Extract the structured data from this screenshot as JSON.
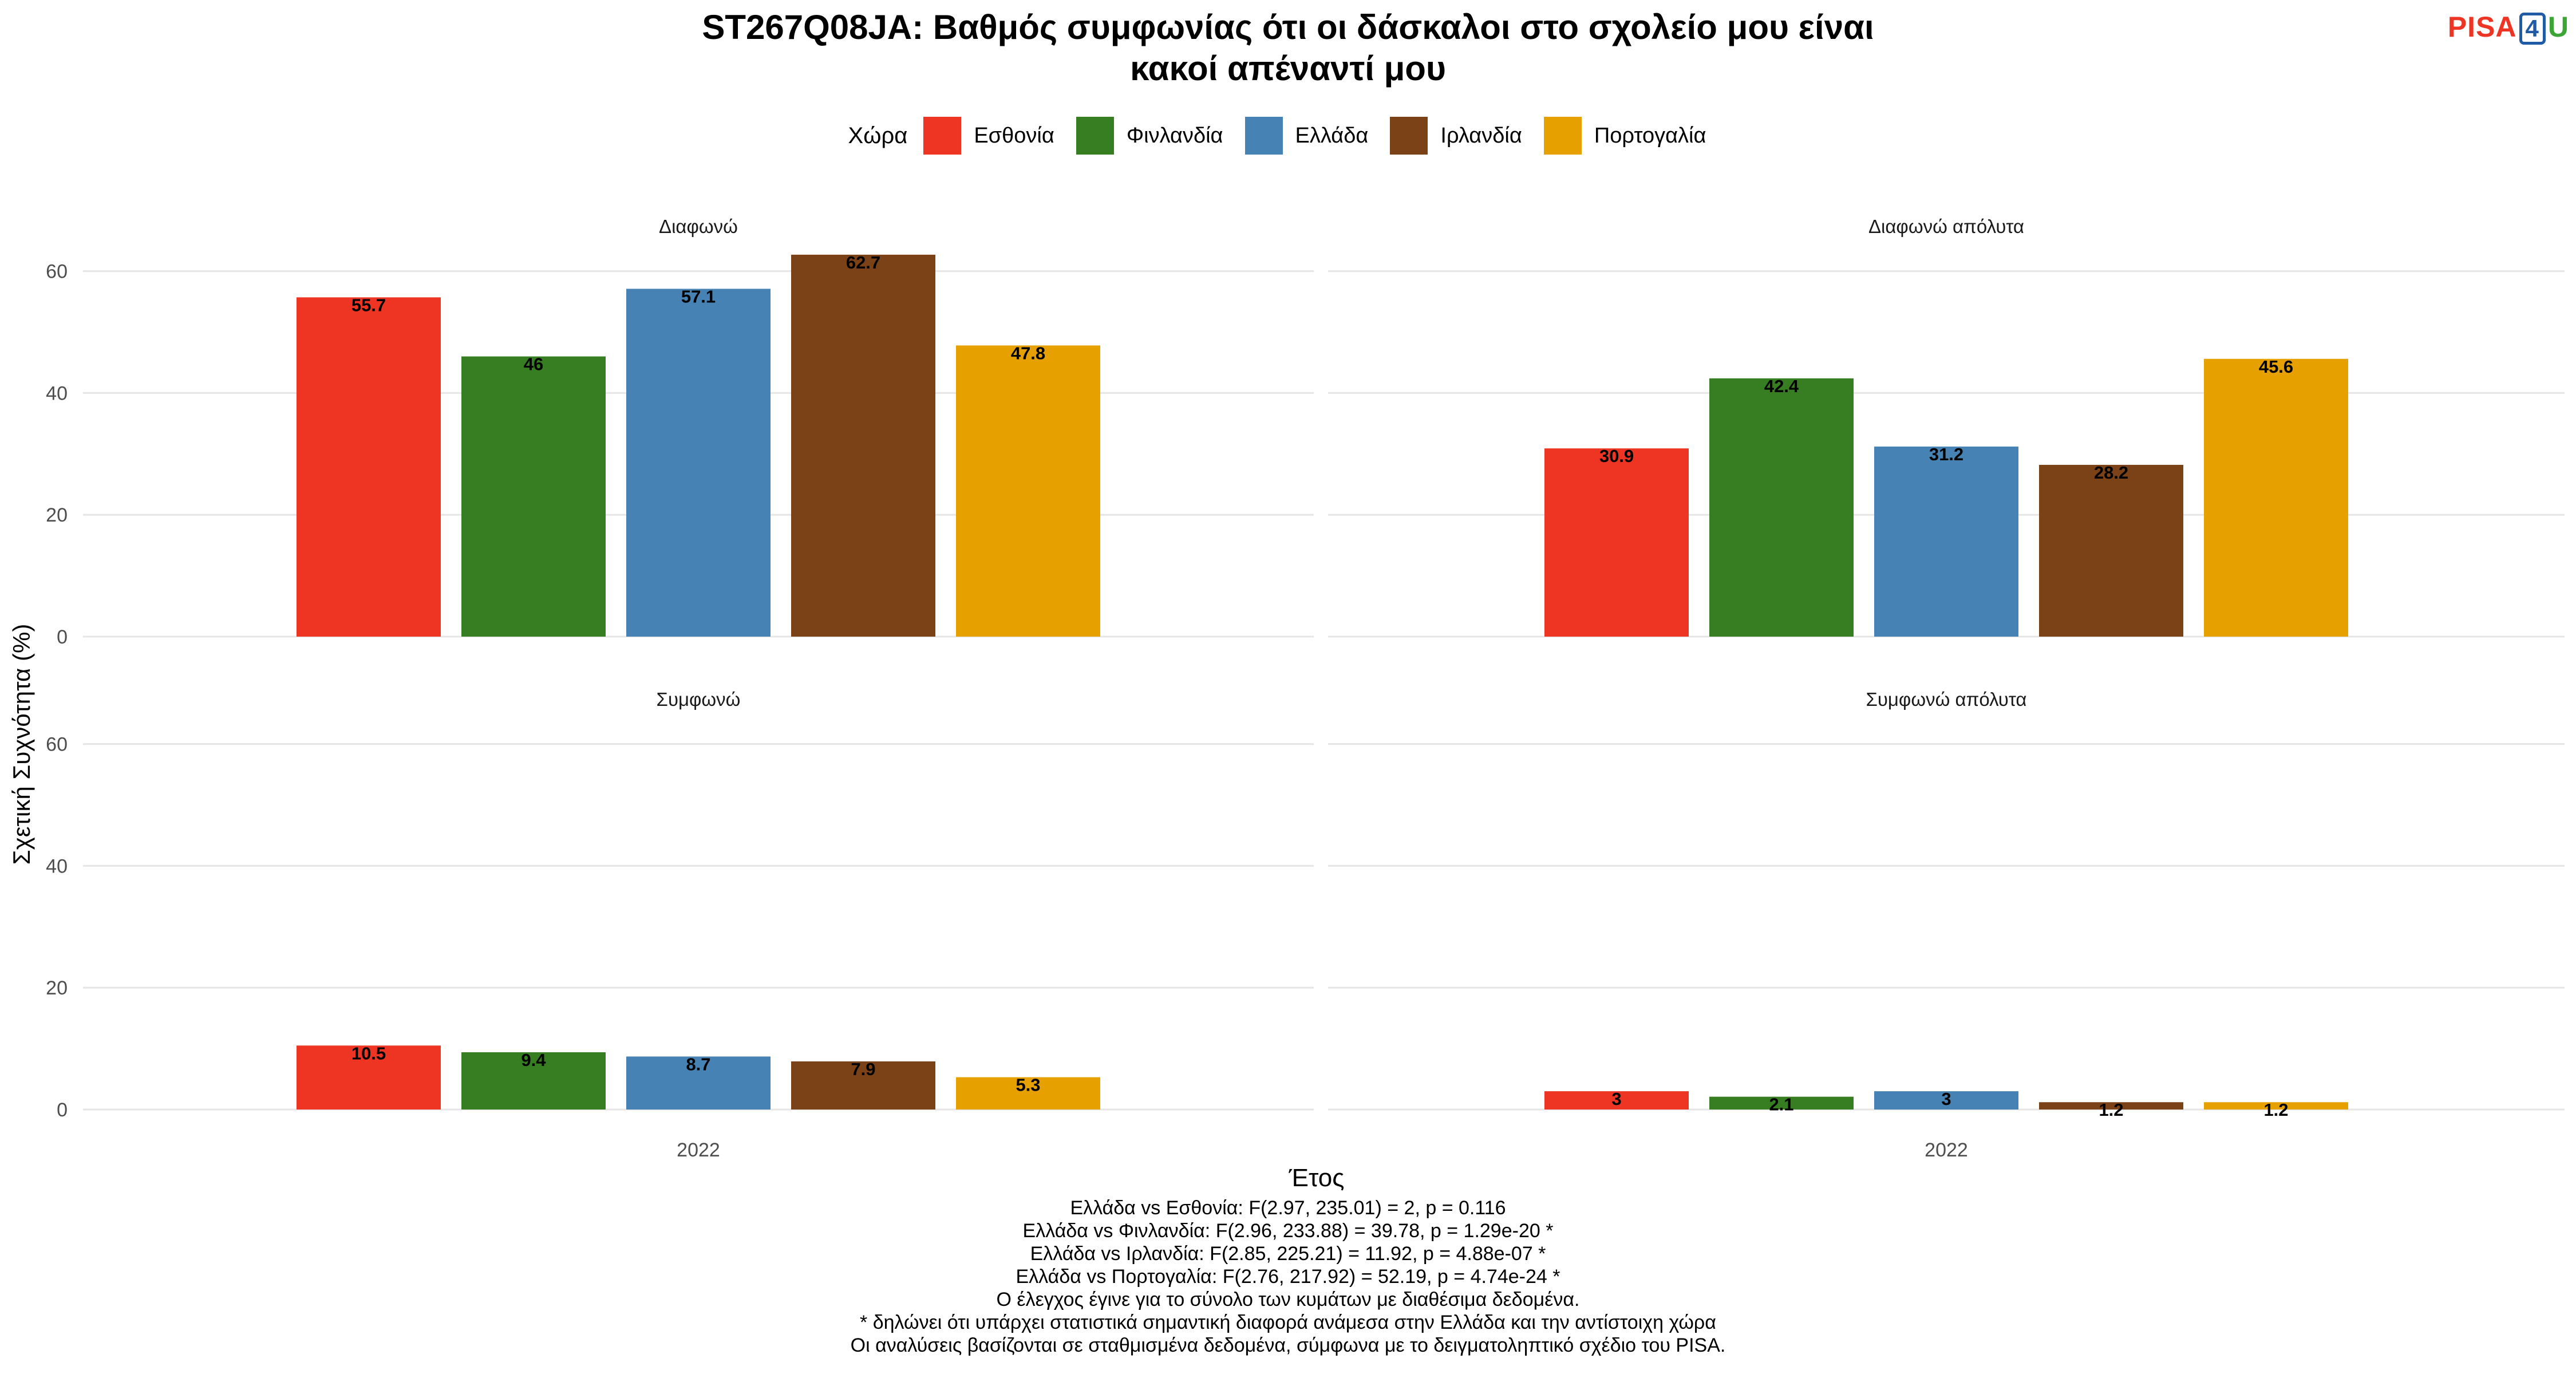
{
  "header": {
    "title_line1": "ST267Q08JA: Βαθμός συμφωνίας ότι οι δάσκαλοι στο σχολείο μου είναι",
    "title_line2": "κακοί απέναντί μου",
    "logo_pisa": "PISA",
    "logo_four": "4",
    "logo_u": "U"
  },
  "legend": {
    "title": "Χώρα",
    "items": [
      {
        "label": "Εσθονία",
        "color": "#EE3524"
      },
      {
        "label": "Φινλανδία",
        "color": "#377E22"
      },
      {
        "label": "Ελλάδα",
        "color": "#4682B4"
      },
      {
        "label": "Ιρλανδία",
        "color": "#7B4217"
      },
      {
        "label": "Πορτογαλία",
        "color": "#E6A000"
      }
    ]
  },
  "chart_data": {
    "type": "bar",
    "ylabel": "Σχετική Συχνότητα (%)",
    "xlabel": "Έτος",
    "ylim": [
      0,
      70
    ],
    "yticks": [
      0,
      20,
      40,
      60
    ],
    "grid": true,
    "legend_position": "top",
    "countries": [
      "Εσθονία",
      "Φινλανδία",
      "Ελλάδα",
      "Ιρλανδία",
      "Πορτογαλία"
    ],
    "panels": [
      {
        "title": "Διαφωνώ",
        "x_category": "2022",
        "show_x_label": false,
        "values": [
          55.7,
          46,
          57.1,
          62.7,
          47.8
        ],
        "labels": [
          "55.7",
          "46",
          "57.1",
          "62.7",
          "47.8"
        ]
      },
      {
        "title": "Διαφωνώ απόλυτα",
        "x_category": "2022",
        "show_x_label": false,
        "values": [
          30.9,
          42.4,
          31.2,
          28.2,
          45.6
        ],
        "labels": [
          "30.9",
          "42.4",
          "31.2",
          "28.2",
          "45.6"
        ]
      },
      {
        "title": "Συμφωνώ",
        "x_category": "2022",
        "show_x_label": true,
        "values": [
          10.5,
          9.4,
          8.7,
          7.9,
          5.3
        ],
        "labels": [
          "10.5",
          "9.4",
          "8.7",
          "7.9",
          "5.3"
        ]
      },
      {
        "title": "Συμφωνώ απόλυτα",
        "x_category": "2022",
        "show_x_label": true,
        "values": [
          3,
          2.1,
          3,
          1.2,
          1.2
        ],
        "labels": [
          "3",
          "2.1",
          "3",
          "1.2",
          "1.2"
        ]
      }
    ]
  },
  "footer": {
    "lines": [
      "Ελλάδα vs Εσθονία: F(2.97, 235.01) = 2, p = 0.116",
      "Ελλάδα vs Φινλανδία: F(2.96, 233.88) = 39.78, p = 1.29e-20 *",
      "Ελλάδα vs Ιρλανδία: F(2.85, 225.21) = 11.92, p = 4.88e-07 *",
      "Ελλάδα vs Πορτογαλία: F(2.76, 217.92) = 52.19, p = 4.74e-24 *",
      "Ο έλεγχος έγινε για το σύνολο των κυμάτων με διαθέσιμα δεδομένα.",
      "* δηλώνει ότι υπάρχει στατιστικά σημαντική διαφορά ανάμεσα στην Ελλάδα και την αντίστοιχη χώρα",
      "Οι αναλύσεις βασίζονται σε σταθμισμένα δεδομένα, σύμφωνα με το δειγματοληπτικό σχέδιο του PISA."
    ]
  }
}
